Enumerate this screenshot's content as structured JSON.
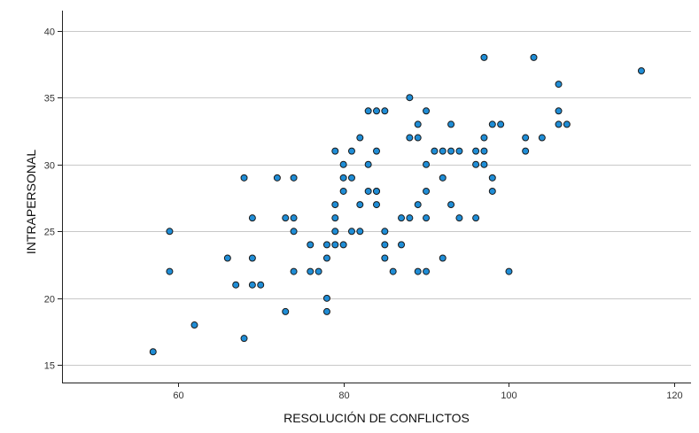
{
  "chart_data": {
    "type": "scatter",
    "title": "",
    "xlabel": "RESOLUCIÓN DE CONFLICTOS",
    "ylabel": "INTRAPERSONAL",
    "xlim": [
      46,
      122
    ],
    "ylim": [
      13.7,
      41.5
    ],
    "xticks": [
      60,
      80,
      100,
      120
    ],
    "yticks": [
      15,
      20,
      25,
      30,
      35,
      40
    ],
    "grid": "horizontal",
    "point_color": "#1f8dd6",
    "edge_color": "#1a1a1a",
    "points": [
      [
        57,
        16
      ],
      [
        59,
        25
      ],
      [
        59,
        22
      ],
      [
        62,
        18
      ],
      [
        66,
        23
      ],
      [
        67,
        21
      ],
      [
        68,
        29
      ],
      [
        68,
        17
      ],
      [
        69,
        26
      ],
      [
        69,
        23
      ],
      [
        69,
        21
      ],
      [
        70,
        21
      ],
      [
        72,
        29
      ],
      [
        73,
        26
      ],
      [
        73,
        19
      ],
      [
        74,
        29
      ],
      [
        74,
        26
      ],
      [
        74,
        25
      ],
      [
        74,
        22
      ],
      [
        76,
        24
      ],
      [
        76,
        22
      ],
      [
        77,
        22
      ],
      [
        78,
        24
      ],
      [
        78,
        23
      ],
      [
        78,
        20
      ],
      [
        78,
        19
      ],
      [
        79,
        31
      ],
      [
        79,
        27
      ],
      [
        79,
        26
      ],
      [
        79,
        25
      ],
      [
        79,
        24
      ],
      [
        80,
        30
      ],
      [
        80,
        29
      ],
      [
        80,
        28
      ],
      [
        80,
        24
      ],
      [
        81,
        31
      ],
      [
        81,
        29
      ],
      [
        81,
        25
      ],
      [
        82,
        32
      ],
      [
        82,
        27
      ],
      [
        82,
        25
      ],
      [
        83,
        34
      ],
      [
        83,
        30
      ],
      [
        83,
        28
      ],
      [
        84,
        34
      ],
      [
        84,
        31
      ],
      [
        84,
        28
      ],
      [
        84,
        28
      ],
      [
        84,
        27
      ],
      [
        85,
        34
      ],
      [
        85,
        25
      ],
      [
        85,
        24
      ],
      [
        85,
        23
      ],
      [
        86,
        22
      ],
      [
        87,
        26
      ],
      [
        87,
        24
      ],
      [
        88,
        35
      ],
      [
        88,
        32
      ],
      [
        88,
        26
      ],
      [
        89,
        33
      ],
      [
        89,
        32
      ],
      [
        89,
        27
      ],
      [
        89,
        22
      ],
      [
        90,
        34
      ],
      [
        90,
        30
      ],
      [
        90,
        28
      ],
      [
        90,
        26
      ],
      [
        90,
        22
      ],
      [
        91,
        31
      ],
      [
        92,
        31
      ],
      [
        92,
        29
      ],
      [
        92,
        23
      ],
      [
        93,
        33
      ],
      [
        93,
        31
      ],
      [
        93,
        27
      ],
      [
        94,
        31
      ],
      [
        94,
        26
      ],
      [
        96,
        31
      ],
      [
        96,
        30
      ],
      [
        96,
        26
      ],
      [
        97,
        38
      ],
      [
        97,
        32
      ],
      [
        97,
        31
      ],
      [
        97,
        30
      ],
      [
        98,
        33
      ],
      [
        98,
        29
      ],
      [
        98,
        28
      ],
      [
        99,
        33
      ],
      [
        100,
        22
      ],
      [
        102,
        32
      ],
      [
        102,
        31
      ],
      [
        103,
        38
      ],
      [
        104,
        32
      ],
      [
        106,
        36
      ],
      [
        106,
        34
      ],
      [
        106,
        33
      ],
      [
        107,
        33
      ],
      [
        116,
        37
      ]
    ]
  }
}
